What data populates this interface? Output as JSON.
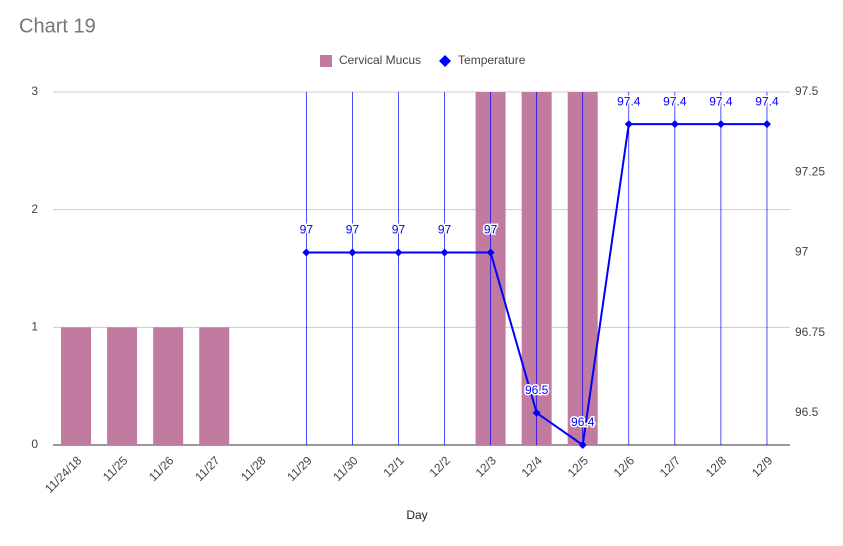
{
  "chart_data": {
    "type": "combo",
    "title": "Chart 19",
    "x_label": "Day",
    "categories": [
      "11/24/18",
      "11/25",
      "11/26",
      "11/27",
      "11/28",
      "11/29",
      "11/30",
      "12/1",
      "12/2",
      "12/3",
      "12/4",
      "12/5",
      "12/6",
      "12/7",
      "12/8",
      "12/9"
    ],
    "series": [
      {
        "name": "Cervical Mucus",
        "type": "bar",
        "color": "#c27ba0",
        "values": [
          1,
          1,
          1,
          1,
          null,
          null,
          null,
          null,
          null,
          3,
          3,
          3,
          null,
          null,
          null,
          null
        ]
      },
      {
        "name": "Temperature",
        "type": "line",
        "axis": "y2",
        "color": "#0000ff",
        "values": [
          null,
          null,
          null,
          null,
          null,
          97,
          97,
          97,
          97,
          97,
          96.5,
          96.4,
          97.4,
          97.4,
          97.4,
          97.4
        ]
      }
    ],
    "ylim": [
      0,
      3
    ],
    "yticks": [
      0,
      1,
      2,
      3
    ],
    "y2lim": [
      96.4,
      97.5
    ],
    "y2ticks": [
      96.5,
      96.75,
      97,
      97.25,
      97.5
    ],
    "grid": true,
    "legend": "top"
  }
}
